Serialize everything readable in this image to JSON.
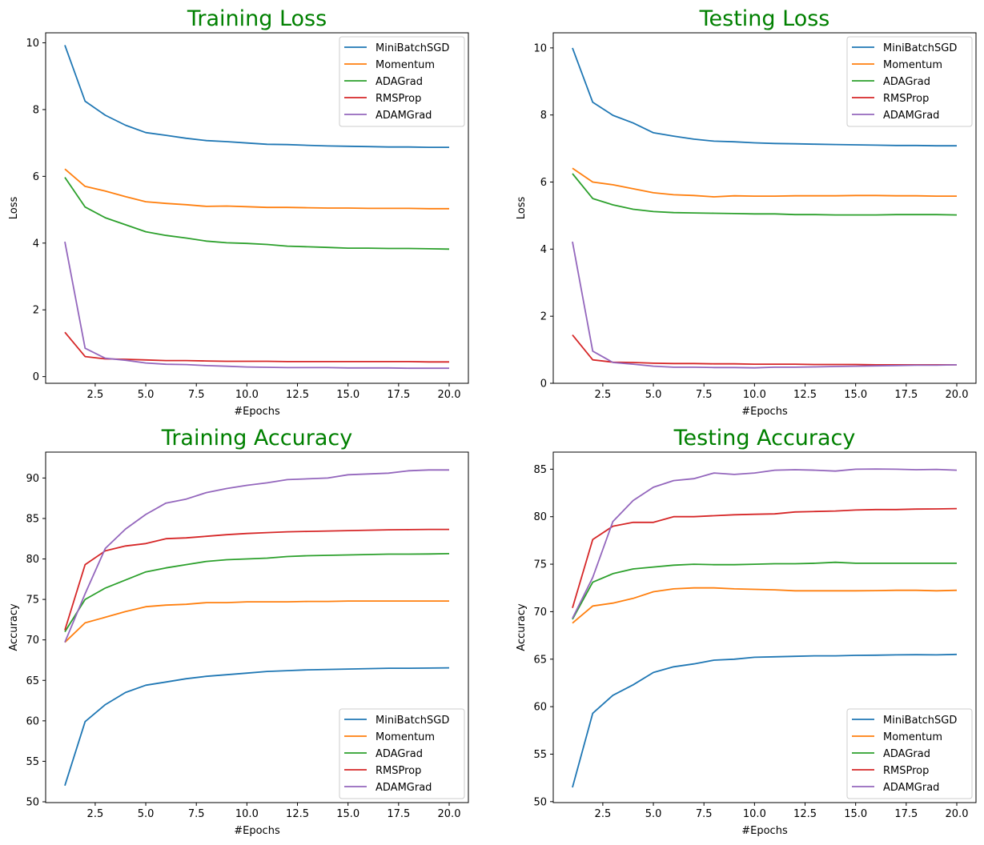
{
  "colors": {
    "title": "#008000",
    "series": [
      "#1f77b4",
      "#ff7f0e",
      "#2ca02c",
      "#d62728",
      "#9467bd"
    ]
  },
  "chart_data": [
    {
      "type": "line",
      "title": "Training Loss",
      "xlabel": "#Epochs",
      "ylabel": "Loss",
      "xlim": [
        0.05,
        20.95
      ],
      "ylim": [
        -0.2,
        10.3
      ],
      "xticks": [
        2.5,
        5.0,
        7.5,
        10.0,
        12.5,
        15.0,
        17.5,
        20.0
      ],
      "xtick_labels": [
        "2.5",
        "5.0",
        "7.5",
        "10.0",
        "12.5",
        "15.0",
        "17.5",
        "20.0"
      ],
      "yticks": [
        0,
        2,
        4,
        6,
        8,
        10
      ],
      "ytick_labels": [
        "0",
        "2",
        "4",
        "6",
        "8",
        "10"
      ],
      "grid": false,
      "legend_position": "top-right",
      "x": [
        1,
        2,
        3,
        4,
        5,
        6,
        7,
        8,
        9,
        10,
        11,
        12,
        13,
        14,
        15,
        16,
        17,
        18,
        19,
        20
      ],
      "series": [
        {
          "name": "MiniBatchSGD",
          "values": [
            9.93,
            8.25,
            7.83,
            7.53,
            7.31,
            7.23,
            7.14,
            7.07,
            7.04,
            7.0,
            6.96,
            6.95,
            6.93,
            6.91,
            6.9,
            6.89,
            6.88,
            6.88,
            6.87,
            6.87
          ]
        },
        {
          "name": "Momentum",
          "values": [
            6.22,
            5.7,
            5.56,
            5.39,
            5.24,
            5.19,
            5.15,
            5.1,
            5.11,
            5.09,
            5.07,
            5.07,
            5.06,
            5.05,
            5.05,
            5.04,
            5.04,
            5.04,
            5.03,
            5.03
          ]
        },
        {
          "name": "ADAGrad",
          "values": [
            5.97,
            5.08,
            4.76,
            4.55,
            4.34,
            4.23,
            4.15,
            4.06,
            4.01,
            3.99,
            3.96,
            3.91,
            3.89,
            3.87,
            3.85,
            3.85,
            3.84,
            3.84,
            3.83,
            3.82
          ]
        },
        {
          "name": "RMSProp",
          "values": [
            1.33,
            0.6,
            0.53,
            0.52,
            0.5,
            0.48,
            0.48,
            0.47,
            0.46,
            0.46,
            0.46,
            0.45,
            0.45,
            0.45,
            0.45,
            0.45,
            0.45,
            0.45,
            0.44,
            0.44
          ]
        },
        {
          "name": "ADAMGrad",
          "values": [
            4.04,
            0.85,
            0.55,
            0.49,
            0.41,
            0.37,
            0.36,
            0.33,
            0.31,
            0.29,
            0.28,
            0.27,
            0.27,
            0.27,
            0.26,
            0.26,
            0.26,
            0.25,
            0.25,
            0.25
          ]
        }
      ]
    },
    {
      "type": "line",
      "title": "Testing Loss",
      "xlabel": "#Epochs",
      "ylabel": "Loss",
      "xlim": [
        0.05,
        20.95
      ],
      "ylim": [
        0,
        10.45
      ],
      "xticks": [
        2.5,
        5.0,
        7.5,
        10.0,
        12.5,
        15.0,
        17.5,
        20.0
      ],
      "xtick_labels": [
        "2.5",
        "5.0",
        "7.5",
        "10.0",
        "12.5",
        "15.0",
        "17.5",
        "20.0"
      ],
      "yticks": [
        0,
        2,
        4,
        6,
        8,
        10
      ],
      "ytick_labels": [
        "0",
        "2",
        "4",
        "6",
        "8",
        "10"
      ],
      "grid": false,
      "legend_position": "top-right",
      "x": [
        1,
        2,
        3,
        4,
        5,
        6,
        7,
        8,
        9,
        10,
        11,
        12,
        13,
        14,
        15,
        16,
        17,
        18,
        19,
        20
      ],
      "series": [
        {
          "name": "MiniBatchSGD",
          "values": [
            10.0,
            8.38,
            7.99,
            7.76,
            7.47,
            7.37,
            7.28,
            7.22,
            7.2,
            7.17,
            7.15,
            7.14,
            7.13,
            7.12,
            7.11,
            7.1,
            7.09,
            7.09,
            7.08,
            7.08
          ]
        },
        {
          "name": "Momentum",
          "values": [
            6.41,
            6.0,
            5.92,
            5.8,
            5.68,
            5.62,
            5.6,
            5.56,
            5.59,
            5.58,
            5.58,
            5.59,
            5.59,
            5.59,
            5.6,
            5.6,
            5.59,
            5.59,
            5.58,
            5.58
          ]
        },
        {
          "name": "ADAGrad",
          "values": [
            6.25,
            5.51,
            5.32,
            5.19,
            5.12,
            5.09,
            5.08,
            5.07,
            5.06,
            5.05,
            5.05,
            5.03,
            5.03,
            5.02,
            5.02,
            5.02,
            5.03,
            5.03,
            5.03,
            5.02
          ]
        },
        {
          "name": "RMSProp",
          "values": [
            1.44,
            0.7,
            0.63,
            0.62,
            0.6,
            0.59,
            0.59,
            0.58,
            0.58,
            0.57,
            0.57,
            0.57,
            0.56,
            0.56,
            0.56,
            0.55,
            0.55,
            0.55,
            0.55,
            0.55
          ]
        },
        {
          "name": "ADAMGrad",
          "values": [
            4.22,
            0.96,
            0.62,
            0.57,
            0.51,
            0.48,
            0.48,
            0.47,
            0.47,
            0.46,
            0.48,
            0.48,
            0.49,
            0.5,
            0.51,
            0.52,
            0.53,
            0.54,
            0.54,
            0.55
          ]
        }
      ]
    },
    {
      "type": "line",
      "title": "Training Accuracy",
      "xlabel": "#Epochs",
      "ylabel": "Accuracy",
      "xlim": [
        0.05,
        20.95
      ],
      "ylim": [
        49.9,
        93.2
      ],
      "xticks": [
        2.5,
        5.0,
        7.5,
        10.0,
        12.5,
        15.0,
        17.5,
        20.0
      ],
      "xtick_labels": [
        "2.5",
        "5.0",
        "7.5",
        "10.0",
        "12.5",
        "15.0",
        "17.5",
        "20.0"
      ],
      "yticks": [
        50,
        55,
        60,
        65,
        70,
        75,
        80,
        85,
        90
      ],
      "ytick_labels": [
        "50",
        "55",
        "60",
        "65",
        "70",
        "75",
        "80",
        "85",
        "90"
      ],
      "grid": false,
      "legend_position": "bottom-right",
      "x": [
        1,
        2,
        3,
        4,
        5,
        6,
        7,
        8,
        9,
        10,
        11,
        12,
        13,
        14,
        15,
        16,
        17,
        18,
        19,
        20
      ],
      "series": [
        {
          "name": "MiniBatchSGD",
          "values": [
            52.0,
            59.9,
            62.0,
            63.5,
            64.4,
            64.8,
            65.2,
            65.5,
            65.7,
            65.9,
            66.1,
            66.2,
            66.3,
            66.35,
            66.4,
            66.45,
            66.5,
            66.5,
            66.52,
            66.55
          ]
        },
        {
          "name": "Momentum",
          "values": [
            69.7,
            72.1,
            72.8,
            73.5,
            74.1,
            74.3,
            74.4,
            74.6,
            74.6,
            74.7,
            74.7,
            74.7,
            74.75,
            74.75,
            74.8,
            74.8,
            74.8,
            74.8,
            74.8,
            74.8
          ]
        },
        {
          "name": "ADAGrad",
          "values": [
            71.0,
            75.0,
            76.4,
            77.4,
            78.4,
            78.9,
            79.3,
            79.7,
            79.9,
            80.0,
            80.1,
            80.3,
            80.4,
            80.45,
            80.5,
            80.55,
            80.6,
            80.6,
            80.62,
            80.65
          ]
        },
        {
          "name": "RMSProp",
          "values": [
            71.2,
            79.3,
            81.0,
            81.6,
            81.9,
            82.5,
            82.6,
            82.8,
            83.0,
            83.15,
            83.25,
            83.35,
            83.4,
            83.45,
            83.5,
            83.55,
            83.6,
            83.62,
            83.65,
            83.65
          ]
        },
        {
          "name": "ADAMGrad",
          "values": [
            69.7,
            75.7,
            81.3,
            83.7,
            85.5,
            86.9,
            87.4,
            88.2,
            88.7,
            89.1,
            89.4,
            89.8,
            89.9,
            90.0,
            90.4,
            90.5,
            90.6,
            90.9,
            91.0,
            91.0
          ]
        }
      ]
    },
    {
      "type": "line",
      "title": "Testing Accuracy",
      "xlabel": "#Epochs",
      "ylabel": "Accuracy",
      "xlim": [
        0.05,
        20.95
      ],
      "ylim": [
        49.9,
        86.8
      ],
      "xticks": [
        2.5,
        5.0,
        7.5,
        10.0,
        12.5,
        15.0,
        17.5,
        20.0
      ],
      "xtick_labels": [
        "2.5",
        "5.0",
        "7.5",
        "10.0",
        "12.5",
        "15.0",
        "17.5",
        "20.0"
      ],
      "yticks": [
        50,
        55,
        60,
        65,
        70,
        75,
        80,
        85
      ],
      "ytick_labels": [
        "50",
        "55",
        "60",
        "65",
        "70",
        "75",
        "80",
        "85"
      ],
      "grid": false,
      "legend_position": "bottom-right",
      "x": [
        1,
        2,
        3,
        4,
        5,
        6,
        7,
        8,
        9,
        10,
        11,
        12,
        13,
        14,
        15,
        16,
        17,
        18,
        19,
        20
      ],
      "series": [
        {
          "name": "MiniBatchSGD",
          "values": [
            51.5,
            59.3,
            61.2,
            62.3,
            63.6,
            64.2,
            64.5,
            64.9,
            65.0,
            65.2,
            65.25,
            65.3,
            65.35,
            65.35,
            65.4,
            65.42,
            65.45,
            65.47,
            65.45,
            65.5
          ]
        },
        {
          "name": "Momentum",
          "values": [
            68.8,
            70.6,
            70.9,
            71.4,
            72.1,
            72.4,
            72.5,
            72.5,
            72.4,
            72.35,
            72.3,
            72.2,
            72.2,
            72.2,
            72.2,
            72.22,
            72.25,
            72.25,
            72.2,
            72.25
          ]
        },
        {
          "name": "ADAGrad",
          "values": [
            69.2,
            73.1,
            74.0,
            74.5,
            74.7,
            74.9,
            75.0,
            74.95,
            74.95,
            75.0,
            75.05,
            75.05,
            75.1,
            75.2,
            75.1,
            75.1,
            75.1,
            75.1,
            75.1,
            75.1
          ]
        },
        {
          "name": "RMSProp",
          "values": [
            70.4,
            77.6,
            79.0,
            79.4,
            79.4,
            80.0,
            80.0,
            80.1,
            80.2,
            80.25,
            80.3,
            80.5,
            80.55,
            80.6,
            80.7,
            80.75,
            80.75,
            80.8,
            80.82,
            80.85
          ]
        },
        {
          "name": "ADAMGrad",
          "values": [
            69.3,
            73.6,
            79.5,
            81.7,
            83.1,
            83.8,
            84.0,
            84.6,
            84.45,
            84.6,
            84.9,
            84.95,
            84.9,
            84.8,
            85.0,
            85.02,
            85.0,
            84.95,
            84.98,
            84.9
          ]
        }
      ]
    }
  ]
}
